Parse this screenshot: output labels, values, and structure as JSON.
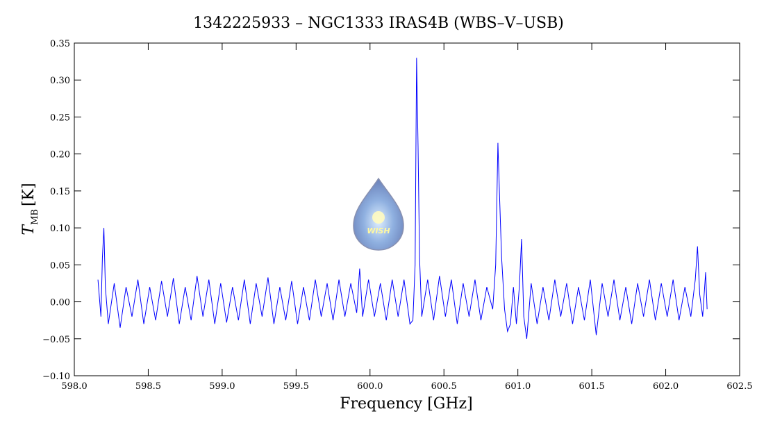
{
  "chart_data": {
    "type": "line",
    "title": "1342225933 – NGC1333 IRAS4B (WBS–V–USB)",
    "xlabel": "Frequency [GHz]",
    "ylabel": {
      "symbol": "T",
      "subscript": "MB",
      "unit": "[K]"
    },
    "logo_text": "WISH",
    "xlim": [
      598,
      602.5
    ],
    "ylim": [
      -0.1,
      0.35
    ],
    "xticks": [
      {
        "value": 598,
        "label": "598.0"
      },
      {
        "value": 598.5,
        "label": "598.5"
      },
      {
        "value": 599,
        "label": "599.0"
      },
      {
        "value": 599.5,
        "label": "599.5"
      },
      {
        "value": 600,
        "label": "600.0"
      },
      {
        "value": 600.5,
        "label": "600.5"
      },
      {
        "value": 601,
        "label": "601.0"
      },
      {
        "value": 601.5,
        "label": "601.5"
      },
      {
        "value": 602,
        "label": "602.0"
      },
      {
        "value": 602.5,
        "label": "602.5"
      }
    ],
    "yticks": [
      {
        "value": -0.1,
        "label": "−0.10"
      },
      {
        "value": -0.05,
        "label": "−0.05"
      },
      {
        "value": 0,
        "label": "0.00"
      },
      0.05,
      {
        "value": 0.1,
        "label": "0.10"
      },
      0.15,
      {
        "value": 0.2,
        "label": "0.20"
      },
      0.25,
      {
        "value": 0.3,
        "label": "0.30"
      },
      0.35
    ],
    "series": [
      {
        "color": "#0000ff",
        "x": [
          598.16,
          598.18,
          598.19,
          598.2,
          598.21,
          598.23,
          598.27,
          598.31,
          598.35,
          598.39,
          598.43,
          598.47,
          598.51,
          598.55,
          598.59,
          598.63,
          598.67,
          598.71,
          598.75,
          598.79,
          598.83,
          598.87,
          598.91,
          598.95,
          598.99,
          599.03,
          599.07,
          599.11,
          599.15,
          599.19,
          599.23,
          599.27,
          599.31,
          599.35,
          599.39,
          599.43,
          599.47,
          599.51,
          599.55,
          599.59,
          599.63,
          599.67,
          599.71,
          599.75,
          599.79,
          599.83,
          599.87,
          599.91,
          599.93,
          599.95,
          599.99,
          600.03,
          600.07,
          600.11,
          600.15,
          600.19,
          600.23,
          600.27,
          600.29,
          600.305,
          600.315,
          600.325,
          600.335,
          600.35,
          600.39,
          600.43,
          600.47,
          600.51,
          600.55,
          600.59,
          600.63,
          600.67,
          600.71,
          600.75,
          600.79,
          600.83,
          600.85,
          600.865,
          600.875,
          600.89,
          600.91,
          600.93,
          600.95,
          600.97,
          600.99,
          601.01,
          601.025,
          601.04,
          601.06,
          601.09,
          601.13,
          601.17,
          601.21,
          601.25,
          601.29,
          601.33,
          601.37,
          601.41,
          601.45,
          601.49,
          601.53,
          601.57,
          601.61,
          601.65,
          601.69,
          601.73,
          601.77,
          601.81,
          601.85,
          601.89,
          601.93,
          601.97,
          602.01,
          602.05,
          602.09,
          602.13,
          602.17,
          602.2,
          602.215,
          602.23,
          602.25,
          602.27,
          602.28
        ],
        "values": [
          0.03,
          -0.02,
          0.06,
          0.1,
          0.02,
          -0.03,
          0.025,
          -0.035,
          0.02,
          -0.02,
          0.03,
          -0.03,
          0.02,
          -0.025,
          0.028,
          -0.02,
          0.032,
          -0.03,
          0.02,
          -0.025,
          0.035,
          -0.02,
          0.03,
          -0.03,
          0.025,
          -0.028,
          0.02,
          -0.025,
          0.03,
          -0.03,
          0.025,
          -0.02,
          0.033,
          -0.03,
          0.02,
          -0.025,
          0.028,
          -0.03,
          0.02,
          -0.025,
          0.03,
          -0.02,
          0.025,
          -0.025,
          0.03,
          -0.02,
          0.025,
          -0.015,
          0.045,
          -0.02,
          0.03,
          -0.02,
          0.025,
          -0.025,
          0.03,
          -0.02,
          0.03,
          -0.03,
          -0.025,
          0.05,
          0.33,
          0.21,
          0.06,
          -0.02,
          0.03,
          -0.025,
          0.035,
          -0.02,
          0.03,
          -0.03,
          0.025,
          -0.02,
          0.03,
          -0.025,
          0.02,
          -0.01,
          0.05,
          0.215,
          0.15,
          0.06,
          -0.01,
          -0.04,
          -0.03,
          0.02,
          -0.03,
          0.02,
          0.085,
          -0.02,
          -0.05,
          0.025,
          -0.03,
          0.02,
          -0.025,
          0.03,
          -0.02,
          0.025,
          -0.03,
          0.02,
          -0.025,
          0.03,
          -0.045,
          0.025,
          -0.02,
          0.03,
          -0.025,
          0.02,
          -0.03,
          0.025,
          -0.02,
          0.03,
          -0.025,
          0.025,
          -0.02,
          0.03,
          -0.025,
          0.02,
          -0.02,
          0.03,
          0.075,
          0.01,
          -0.02,
          0.04,
          -0.01
        ]
      }
    ]
  }
}
